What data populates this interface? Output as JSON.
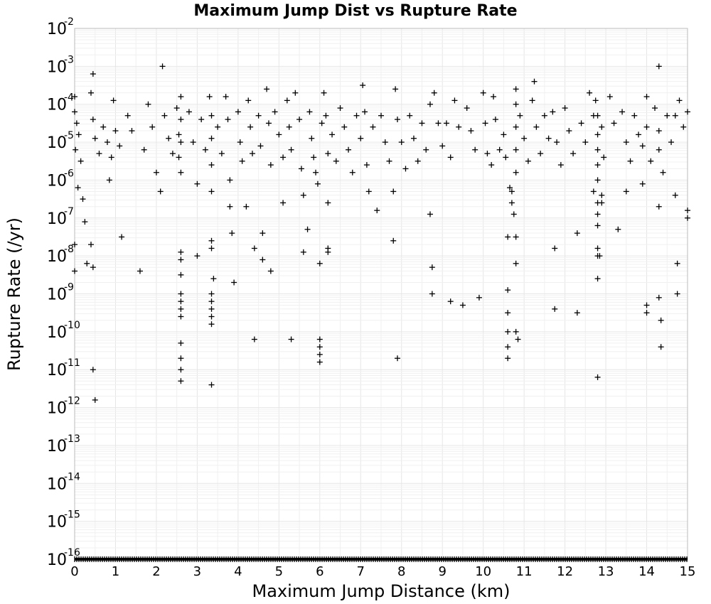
{
  "chart_data": {
    "type": "scatter",
    "title": "Maximum Jump Dist vs Rupture Rate",
    "xlabel": "Maximum Jump Distance (km)",
    "ylabel": "Rupture Rate (/yr)",
    "xlim": [
      0,
      15
    ],
    "ylim_exponent": [
      -16,
      -2
    ],
    "y_scale": "log",
    "grid": true,
    "marker": "plus",
    "marker_color": "#000000",
    "x_ticks": [
      "0",
      "1",
      "2",
      "3",
      "4",
      "5",
      "6",
      "7",
      "8",
      "9",
      "10",
      "11",
      "12",
      "13",
      "14",
      "15"
    ],
    "y_ticks": [
      {
        "base": "10",
        "exp": "-2"
      },
      {
        "base": "10",
        "exp": "-3"
      },
      {
        "base": "10",
        "exp": "-4"
      },
      {
        "base": "10",
        "exp": "-5"
      },
      {
        "base": "10",
        "exp": "-6"
      },
      {
        "base": "10",
        "exp": "-7"
      },
      {
        "base": "10",
        "exp": "-8"
      },
      {
        "base": "10",
        "exp": "-9"
      },
      {
        "base": "10",
        "exp": "-10"
      },
      {
        "base": "10",
        "exp": "-11"
      },
      {
        "base": "10",
        "exp": "-12"
      },
      {
        "base": "10",
        "exp": "-13"
      },
      {
        "base": "10",
        "exp": "-14"
      },
      {
        "base": "10",
        "exp": "-15"
      },
      {
        "base": "10",
        "exp": "-16"
      }
    ],
    "points_note_log10": "y values given as log10(rupture rate)",
    "points": [
      [
        0.0,
        -3.8
      ],
      [
        0.0,
        -4.2
      ],
      [
        0.05,
        -4.5
      ],
      [
        0.1,
        -4.8
      ],
      [
        0.02,
        -5.2
      ],
      [
        0.15,
        -5.5
      ],
      [
        0.08,
        -6.2
      ],
      [
        0.2,
        -6.5
      ],
      [
        0.25,
        -7.1
      ],
      [
        0.0,
        -7.7
      ],
      [
        0.0,
        -8.4
      ],
      [
        0.3,
        -8.2
      ],
      [
        0.45,
        -3.2
      ],
      [
        0.4,
        -3.7
      ],
      [
        0.45,
        -4.4
      ],
      [
        0.5,
        -4.9
      ],
      [
        0.6,
        -5.3
      ],
      [
        0.4,
        -7.7
      ],
      [
        0.45,
        -8.3
      ],
      [
        0.45,
        -11.0
      ],
      [
        0.5,
        -11.8
      ],
      [
        0.7,
        -4.6
      ],
      [
        0.8,
        -5.0
      ],
      [
        0.9,
        -5.4
      ],
      [
        0.85,
        -6.0
      ],
      [
        0.95,
        -3.9
      ],
      [
        1.0,
        -4.7
      ],
      [
        1.1,
        -5.1
      ],
      [
        1.15,
        -7.5
      ],
      [
        1.3,
        -4.3
      ],
      [
        1.4,
        -4.7
      ],
      [
        1.6,
        -8.4
      ],
      [
        1.7,
        -5.2
      ],
      [
        1.8,
        -4.0
      ],
      [
        1.9,
        -4.6
      ],
      [
        2.0,
        -5.8
      ],
      [
        2.1,
        -6.3
      ],
      [
        2.15,
        -3.0
      ],
      [
        2.2,
        -4.3
      ],
      [
        2.3,
        -4.9
      ],
      [
        2.4,
        -5.3
      ],
      [
        2.5,
        -4.1
      ],
      [
        2.55,
        -4.8
      ],
      [
        2.55,
        -5.4
      ],
      [
        2.6,
        -3.8
      ],
      [
        2.6,
        -4.4
      ],
      [
        2.6,
        -5.0
      ],
      [
        2.6,
        -5.8
      ],
      [
        2.6,
        -7.9
      ],
      [
        2.6,
        -8.1
      ],
      [
        2.6,
        -8.5
      ],
      [
        2.6,
        -9.0
      ],
      [
        2.6,
        -9.2
      ],
      [
        2.6,
        -9.4
      ],
      [
        2.6,
        -9.6
      ],
      [
        2.6,
        -10.3
      ],
      [
        2.6,
        -10.7
      ],
      [
        2.6,
        -11.0
      ],
      [
        2.6,
        -11.3
      ],
      [
        2.8,
        -4.2
      ],
      [
        2.9,
        -5.0
      ],
      [
        3.0,
        -6.1
      ],
      [
        3.0,
        -8.0
      ],
      [
        3.1,
        -4.4
      ],
      [
        3.2,
        -5.2
      ],
      [
        3.3,
        -3.8
      ],
      [
        3.35,
        -4.3
      ],
      [
        3.35,
        -4.9
      ],
      [
        3.35,
        -5.6
      ],
      [
        3.35,
        -6.3
      ],
      [
        3.35,
        -7.6
      ],
      [
        3.35,
        -7.8
      ],
      [
        3.35,
        -9.0
      ],
      [
        3.35,
        -9.2
      ],
      [
        3.35,
        -9.4
      ],
      [
        3.35,
        -9.6
      ],
      [
        3.35,
        -9.8
      ],
      [
        3.35,
        -11.4
      ],
      [
        3.4,
        -8.6
      ],
      [
        3.5,
        -4.6
      ],
      [
        3.6,
        -5.3
      ],
      [
        3.7,
        -3.8
      ],
      [
        3.75,
        -4.4
      ],
      [
        3.8,
        -6.0
      ],
      [
        3.8,
        -6.7
      ],
      [
        3.85,
        -7.4
      ],
      [
        3.9,
        -8.7
      ],
      [
        4.0,
        -4.2
      ],
      [
        4.05,
        -5.0
      ],
      [
        4.1,
        -5.5
      ],
      [
        4.2,
        -6.7
      ],
      [
        4.25,
        -3.9
      ],
      [
        4.3,
        -4.6
      ],
      [
        4.35,
        -5.3
      ],
      [
        4.4,
        -7.8
      ],
      [
        4.4,
        -10.2
      ],
      [
        4.5,
        -4.3
      ],
      [
        4.55,
        -5.1
      ],
      [
        4.6,
        -7.4
      ],
      [
        4.6,
        -8.1
      ],
      [
        4.7,
        -3.6
      ],
      [
        4.75,
        -4.5
      ],
      [
        4.8,
        -5.6
      ],
      [
        4.8,
        -8.4
      ],
      [
        4.9,
        -4.2
      ],
      [
        5.0,
        -4.8
      ],
      [
        5.1,
        -5.4
      ],
      [
        5.1,
        -6.6
      ],
      [
        5.2,
        -3.9
      ],
      [
        5.25,
        -4.6
      ],
      [
        5.3,
        -5.2
      ],
      [
        5.3,
        -10.2
      ],
      [
        5.4,
        -3.7
      ],
      [
        5.5,
        -4.4
      ],
      [
        5.55,
        -5.7
      ],
      [
        5.6,
        -6.4
      ],
      [
        5.6,
        -7.9
      ],
      [
        5.7,
        -7.3
      ],
      [
        5.75,
        -4.2
      ],
      [
        5.8,
        -4.9
      ],
      [
        5.85,
        -5.4
      ],
      [
        5.9,
        -5.8
      ],
      [
        5.95,
        -6.1
      ],
      [
        6.0,
        -8.2
      ],
      [
        6.0,
        -10.2
      ],
      [
        6.0,
        -10.4
      ],
      [
        6.0,
        -10.6
      ],
      [
        6.0,
        -10.8
      ],
      [
        6.05,
        -4.5
      ],
      [
        6.1,
        -3.7
      ],
      [
        6.15,
        -4.3
      ],
      [
        6.2,
        -5.3
      ],
      [
        6.2,
        -6.6
      ],
      [
        6.2,
        -7.8
      ],
      [
        6.2,
        -7.9
      ],
      [
        6.3,
        -4.8
      ],
      [
        6.4,
        -5.5
      ],
      [
        6.5,
        -4.1
      ],
      [
        6.6,
        -4.6
      ],
      [
        6.7,
        -5.2
      ],
      [
        6.8,
        -5.8
      ],
      [
        6.9,
        -4.3
      ],
      [
        7.0,
        -4.9
      ],
      [
        7.05,
        -3.5
      ],
      [
        7.1,
        -4.2
      ],
      [
        7.15,
        -5.6
      ],
      [
        7.2,
        -6.3
      ],
      [
        7.3,
        -4.6
      ],
      [
        7.4,
        -6.8
      ],
      [
        7.5,
        -4.3
      ],
      [
        7.6,
        -5.0
      ],
      [
        7.7,
        -5.5
      ],
      [
        7.8,
        -6.3
      ],
      [
        7.8,
        -7.6
      ],
      [
        7.85,
        -3.6
      ],
      [
        7.9,
        -4.4
      ],
      [
        7.9,
        -10.7
      ],
      [
        8.0,
        -5.0
      ],
      [
        8.1,
        -5.7
      ],
      [
        8.2,
        -4.3
      ],
      [
        8.3,
        -4.9
      ],
      [
        8.4,
        -5.5
      ],
      [
        8.5,
        -4.5
      ],
      [
        8.6,
        -5.2
      ],
      [
        8.7,
        -4.0
      ],
      [
        8.7,
        -6.9
      ],
      [
        8.75,
        -8.3
      ],
      [
        8.75,
        -9.0
      ],
      [
        8.8,
        -3.7
      ],
      [
        8.9,
        -4.5
      ],
      [
        9.0,
        -5.1
      ],
      [
        9.1,
        -4.5
      ],
      [
        9.2,
        -5.4
      ],
      [
        9.2,
        -9.2
      ],
      [
        9.3,
        -3.9
      ],
      [
        9.4,
        -4.6
      ],
      [
        9.5,
        -9.3
      ],
      [
        9.6,
        -4.1
      ],
      [
        9.7,
        -4.7
      ],
      [
        9.8,
        -5.2
      ],
      [
        9.9,
        -9.1
      ],
      [
        10.0,
        -3.7
      ],
      [
        10.05,
        -4.5
      ],
      [
        10.1,
        -5.3
      ],
      [
        10.2,
        -5.6
      ],
      [
        10.25,
        -3.8
      ],
      [
        10.3,
        -4.4
      ],
      [
        10.4,
        -5.2
      ],
      [
        10.5,
        -4.8
      ],
      [
        10.55,
        -5.4
      ],
      [
        10.6,
        -7.5
      ],
      [
        10.6,
        -8.9
      ],
      [
        10.6,
        -9.5
      ],
      [
        10.6,
        -10.0
      ],
      [
        10.6,
        -10.4
      ],
      [
        10.6,
        -10.7
      ],
      [
        10.65,
        -6.2
      ],
      [
        10.7,
        -6.3
      ],
      [
        10.7,
        -6.6
      ],
      [
        10.75,
        -6.9
      ],
      [
        10.8,
        -3.6
      ],
      [
        10.8,
        -4.0
      ],
      [
        10.8,
        -4.6
      ],
      [
        10.8,
        -5.2
      ],
      [
        10.8,
        -5.8
      ],
      [
        10.8,
        -7.5
      ],
      [
        10.8,
        -8.2
      ],
      [
        10.8,
        -10.0
      ],
      [
        10.85,
        -10.2
      ],
      [
        10.9,
        -4.3
      ],
      [
        11.0,
        -4.9
      ],
      [
        11.1,
        -5.5
      ],
      [
        11.2,
        -3.9
      ],
      [
        11.25,
        -3.4
      ],
      [
        11.3,
        -4.6
      ],
      [
        11.4,
        -5.3
      ],
      [
        11.5,
        -4.3
      ],
      [
        11.6,
        -4.9
      ],
      [
        11.7,
        -4.2
      ],
      [
        11.75,
        -7.8
      ],
      [
        11.75,
        -9.4
      ],
      [
        11.8,
        -5.0
      ],
      [
        11.9,
        -5.6
      ],
      [
        12.0,
        -4.1
      ],
      [
        12.1,
        -4.7
      ],
      [
        12.2,
        -5.3
      ],
      [
        12.3,
        -7.4
      ],
      [
        12.3,
        -9.5
      ],
      [
        12.4,
        -4.5
      ],
      [
        12.5,
        -5.0
      ],
      [
        12.6,
        -3.7
      ],
      [
        12.7,
        -4.3
      ],
      [
        12.7,
        -6.3
      ],
      [
        12.75,
        -3.9
      ],
      [
        12.8,
        -4.3
      ],
      [
        12.8,
        -4.8
      ],
      [
        12.8,
        -5.2
      ],
      [
        12.8,
        -5.6
      ],
      [
        12.8,
        -6.0
      ],
      [
        12.8,
        -6.6
      ],
      [
        12.8,
        -6.9
      ],
      [
        12.8,
        -7.2
      ],
      [
        12.8,
        -7.8
      ],
      [
        12.8,
        -8.0
      ],
      [
        12.8,
        -8.6
      ],
      [
        12.8,
        -11.2
      ],
      [
        12.85,
        -8.0
      ],
      [
        12.9,
        -4.6
      ],
      [
        12.9,
        -6.4
      ],
      [
        12.9,
        -6.6
      ],
      [
        12.95,
        -5.4
      ],
      [
        13.1,
        -3.8
      ],
      [
        13.2,
        -4.5
      ],
      [
        13.3,
        -7.3
      ],
      [
        13.4,
        -4.2
      ],
      [
        13.5,
        -5.0
      ],
      [
        13.5,
        -6.3
      ],
      [
        13.6,
        -5.5
      ],
      [
        13.7,
        -4.3
      ],
      [
        13.8,
        -4.8
      ],
      [
        13.9,
        -5.1
      ],
      [
        13.9,
        -6.1
      ],
      [
        14.0,
        -3.8
      ],
      [
        14.0,
        -4.6
      ],
      [
        14.0,
        -9.3
      ],
      [
        14.0,
        -9.5
      ],
      [
        14.1,
        -5.5
      ],
      [
        14.2,
        -4.1
      ],
      [
        14.3,
        -3.0
      ],
      [
        14.3,
        -4.7
      ],
      [
        14.3,
        -5.2
      ],
      [
        14.3,
        -6.7
      ],
      [
        14.3,
        -9.1
      ],
      [
        14.35,
        -9.7
      ],
      [
        14.35,
        -10.4
      ],
      [
        14.4,
        -5.8
      ],
      [
        14.5,
        -4.3
      ],
      [
        14.6,
        -5.0
      ],
      [
        14.7,
        -4.3
      ],
      [
        14.7,
        -6.4
      ],
      [
        14.75,
        -8.2
      ],
      [
        14.75,
        -9.0
      ],
      [
        14.8,
        -3.9
      ],
      [
        14.9,
        -4.6
      ],
      [
        15.0,
        -6.8
      ],
      [
        15.0,
        -7.0
      ],
      [
        15.0,
        -4.2
      ]
    ],
    "floor_band_log10": -16
  }
}
